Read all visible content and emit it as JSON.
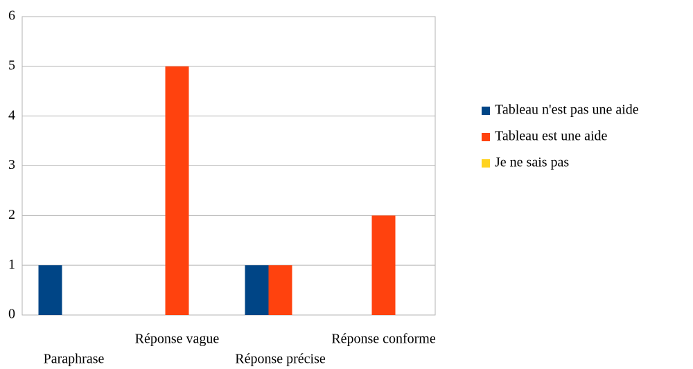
{
  "chart_data": {
    "type": "bar",
    "categories": [
      "Paraphrase",
      "Réponse vague",
      "Réponse précise",
      "Réponse conforme"
    ],
    "series": [
      {
        "name": "Tableau n'est pas une aide",
        "color": "#004586",
        "values": [
          1,
          0,
          1,
          0
        ]
      },
      {
        "name": "Tableau est une aide",
        "color": "#ff420e",
        "values": [
          0,
          5,
          1,
          2
        ]
      },
      {
        "name": "Je ne sais pas",
        "color": "#ffd320",
        "values": [
          0,
          0,
          0,
          0
        ]
      }
    ],
    "ylim": [
      0,
      6
    ],
    "yticks": [
      0,
      1,
      2,
      3,
      4,
      5,
      6
    ],
    "grid": true,
    "legend": "right"
  }
}
